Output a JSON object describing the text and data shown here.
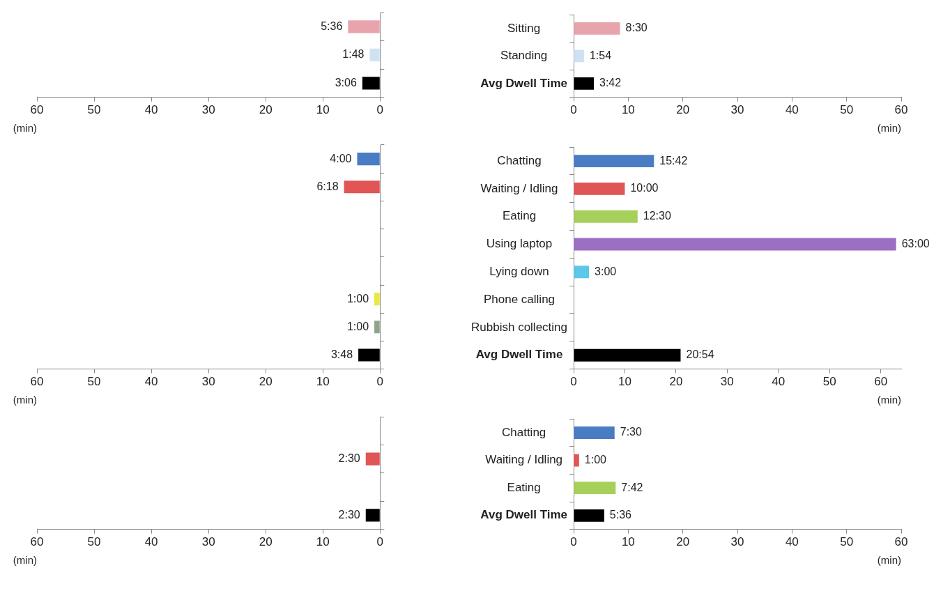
{
  "chart_data": [
    {
      "type": "bar",
      "orientation": "horizontal",
      "categories": [
        null,
        null,
        null
      ],
      "values": [
        5.6,
        1.8,
        3.1
      ],
      "value_labels": [
        "5:36",
        "1:48",
        "3:06"
      ],
      "colors": [
        "#e8a4ac",
        "#cfe2f3",
        "#000000"
      ],
      "xlim": [
        60,
        0
      ],
      "xticks": [
        60,
        50,
        40,
        30,
        20,
        10,
        0
      ],
      "xlabel": "(min)",
      "tick_labels": "x",
      "grid": false
    },
    {
      "type": "bar",
      "orientation": "horizontal",
      "categories": [
        "Sitting",
        "Standing",
        "Avg Dwell Time"
      ],
      "values": [
        8.5,
        1.9,
        3.7
      ],
      "value_labels": [
        "8:30",
        "1:54",
        "3:42"
      ],
      "colors": [
        "#e8a4ac",
        "#cfe2f3",
        "#000000"
      ],
      "xlim": [
        0,
        60
      ],
      "xticks": [
        0,
        10,
        20,
        30,
        40,
        50,
        60
      ],
      "xlabel": "(min)",
      "grid": false
    },
    {
      "type": "bar",
      "orientation": "horizontal",
      "categories": [
        null,
        null,
        null,
        null,
        null,
        null,
        null,
        null
      ],
      "values": [
        4,
        6.3,
        null,
        null,
        null,
        1,
        1,
        3.8
      ],
      "value_labels": [
        "4:00",
        "6:18",
        null,
        null,
        null,
        "1:00",
        "1:00",
        "3:48"
      ],
      "colors": [
        "#4a7cc4",
        "#e05555",
        "#a6d05a",
        "#9b6fc2",
        "#5cc8e8",
        "#e8e840",
        "#8fa58a",
        "#000000"
      ],
      "xlim": [
        60,
        0
      ],
      "xticks": [
        60,
        50,
        40,
        30,
        20,
        10,
        0
      ],
      "xlabel": "(min)",
      "tick_labels": "x",
      "grid": false
    },
    {
      "type": "bar",
      "orientation": "horizontal",
      "categories": [
        "Chatting",
        "Waiting / Idling",
        "Eating",
        "Using laptop",
        "Lying down",
        "Phone calling",
        "Rubbish collecting",
        "Avg Dwell Time"
      ],
      "values": [
        15.7,
        10,
        12.5,
        63,
        3,
        null,
        null,
        20.9
      ],
      "value_labels": [
        "15:42",
        "10:00",
        "12:30",
        "63:00",
        "3:00",
        null,
        null,
        "20:54"
      ],
      "colors": [
        "#4a7cc4",
        "#e05555",
        "#a6d05a",
        "#9b6fc2",
        "#5cc8e8",
        "#e8e840",
        "#8fa58a",
        "#000000"
      ],
      "xlim": [
        0,
        64
      ],
      "xticks": [
        0,
        10,
        20,
        30,
        40,
        50,
        60
      ],
      "xlabel": "(min)",
      "grid": false
    },
    {
      "type": "bar",
      "orientation": "horizontal",
      "categories": [
        null,
        null,
        null,
        null
      ],
      "values": [
        null,
        2.5,
        null,
        2.5
      ],
      "value_labels": [
        null,
        "2:30",
        null,
        "2:30"
      ],
      "colors": [
        "#4a7cc4",
        "#e05555",
        "#a6d05a",
        "#000000"
      ],
      "xlim": [
        60,
        0
      ],
      "xticks": [
        60,
        50,
        40,
        30,
        20,
        10,
        0
      ],
      "xlabel": "(min)",
      "tick_labels": "x",
      "grid": false
    },
    {
      "type": "bar",
      "orientation": "horizontal",
      "categories": [
        "Chatting",
        "Waiting / Idling",
        "Eating",
        "Avg Dwell Time"
      ],
      "values": [
        7.5,
        1,
        7.7,
        5.6
      ],
      "value_labels": [
        "7:30",
        "1:00",
        "7:42",
        "5:36"
      ],
      "colors": [
        "#4a7cc4",
        "#e05555",
        "#a6d05a",
        "#000000"
      ],
      "xlim": [
        0,
        60
      ],
      "xticks": [
        0,
        10,
        20,
        30,
        40,
        50,
        60
      ],
      "xlabel": "(min)",
      "grid": false
    }
  ]
}
